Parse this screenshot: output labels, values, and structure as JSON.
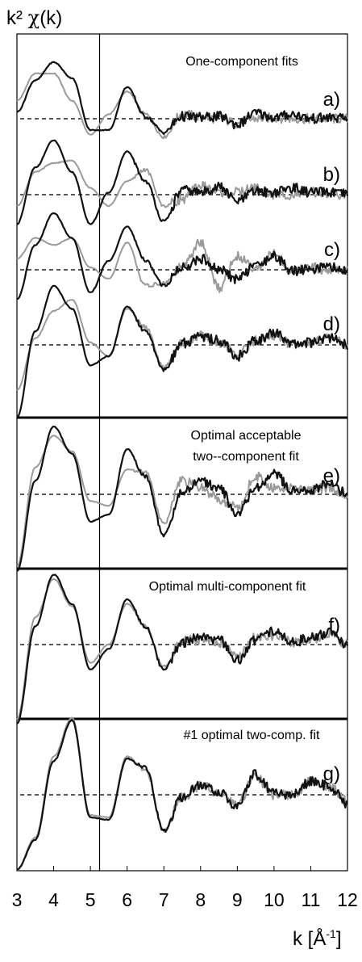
{
  "chart_data": {
    "type": "line",
    "ylabel_prefix": "k²",
    "ylabel_symbol": "χ",
    "ylabel_suffix": "(k)",
    "xlabel_k": "k [",
    "xlabel_A": "Å",
    "xlabel_exp": "-1",
    "xlabel_close": "]",
    "xlim": [
      3,
      12
    ],
    "xticks": [
      "3",
      "4",
      "5",
      "6",
      "7",
      "8",
      "9",
      "10",
      "11",
      "12"
    ],
    "vline_x": 5.25,
    "grid": false,
    "legend": "none",
    "colors": {
      "data": "#111111",
      "fit": "#9a9a9a",
      "baseline": "#222222"
    },
    "panels": [
      {
        "label": "a)",
        "title": "One-component fits",
        "x": [
          3.0,
          3.5,
          4.0,
          4.5,
          5.0,
          5.5,
          6.0,
          6.5,
          7.0,
          7.5,
          8.0,
          8.5,
          9.0,
          9.5,
          10.0,
          10.5,
          11.0,
          11.5,
          12.0
        ],
        "series": [
          {
            "role": "data",
            "values": [
              0.3,
              1.7,
              2.5,
              1.8,
              -0.5,
              -0.5,
              1.4,
              0.1,
              -0.6,
              0.1,
              0.05,
              0.1,
              -0.25,
              0.25,
              0.05,
              0.2,
              0.0,
              0.05,
              0.0
            ]
          },
          {
            "role": "fit",
            "values": [
              0.8,
              2.0,
              2.0,
              0.8,
              -0.7,
              0.2,
              1.2,
              0.2,
              -0.8,
              0.2,
              0.1,
              0.0,
              -0.2,
              0.0,
              0.05,
              0.0,
              0.0,
              0.0,
              0.0
            ]
          }
        ]
      },
      {
        "label": "b)",
        "title": "",
        "x": [
          3.0,
          3.5,
          4.0,
          4.5,
          5.0,
          5.5,
          6.0,
          6.5,
          7.0,
          7.5,
          8.0,
          8.5,
          9.0,
          9.5,
          10.0,
          10.5,
          11.0,
          11.5,
          12.0
        ],
        "series": [
          {
            "role": "data",
            "values": [
              -1.3,
              1.2,
              2.4,
              1.0,
              -1.3,
              0.1,
              1.9,
              0.6,
              -1.2,
              0.2,
              0.1,
              0.35,
              -0.3,
              0.15,
              0.1,
              0.3,
              0.1,
              0.1,
              0.0
            ]
          },
          {
            "role": "fit",
            "values": [
              -0.5,
              1.0,
              1.4,
              1.5,
              0.3,
              -0.5,
              0.6,
              1.1,
              -0.5,
              -0.2,
              0.4,
              0.1,
              0.1,
              0.3,
              0.0,
              0.0,
              0.1,
              0.0,
              0.0
            ]
          }
        ]
      },
      {
        "label": "c)",
        "title": "",
        "x": [
          3.0,
          3.5,
          4.0,
          4.5,
          5.0,
          5.5,
          6.0,
          6.5,
          7.0,
          7.5,
          8.0,
          8.5,
          9.0,
          9.5,
          10.0,
          10.5,
          11.0,
          11.5,
          12.0
        ],
        "series": [
          {
            "role": "data",
            "values": [
              -1.3,
              1.1,
              2.5,
              1.4,
              -1.0,
              0.4,
              1.9,
              0.4,
              -0.7,
              0.1,
              0.5,
              0.0,
              -0.4,
              0.2,
              0.6,
              -0.05,
              0.05,
              0.1,
              0.0
            ]
          },
          {
            "role": "fit",
            "values": [
              0.5,
              1.4,
              1.1,
              1.4,
              0.1,
              -0.4,
              1.2,
              -0.7,
              -0.6,
              0.1,
              1.2,
              -0.8,
              0.6,
              0.1,
              0.7,
              -0.1,
              0.1,
              0.0,
              0.0
            ]
          }
        ]
      },
      {
        "label": "d)",
        "title": "",
        "x": [
          3.0,
          3.5,
          4.0,
          4.5,
          5.0,
          5.5,
          6.0,
          6.5,
          7.0,
          7.5,
          8.0,
          8.5,
          9.0,
          9.5,
          10.0,
          10.5,
          11.0,
          11.5,
          12.0
        ],
        "series": [
          {
            "role": "data",
            "values": [
              -3.2,
              0.6,
              2.6,
              1.6,
              -0.9,
              -0.5,
              1.7,
              0.6,
              -1.1,
              0.05,
              0.4,
              0.2,
              -0.5,
              0.2,
              0.5,
              0.05,
              0.1,
              0.3,
              0.0
            ]
          },
          {
            "role": "fit",
            "values": [
              -2.0,
              0.3,
              1.5,
              2.0,
              0.1,
              -0.5,
              1.6,
              0.8,
              -1.0,
              0.1,
              0.4,
              0.1,
              -0.4,
              0.2,
              0.4,
              0.05,
              0.1,
              0.3,
              0.0
            ]
          }
        ]
      },
      {
        "label": "e)",
        "title": "Optimal acceptable two--component fit",
        "x": [
          3.0,
          3.5,
          4.0,
          4.5,
          5.0,
          5.5,
          6.0,
          6.5,
          7.0,
          7.5,
          8.0,
          8.5,
          9.0,
          9.5,
          10.0,
          10.5,
          11.0,
          11.5,
          12.0
        ],
        "series": [
          {
            "role": "data",
            "values": [
              -3.4,
              0.6,
              3.0,
              1.8,
              -1.2,
              -0.9,
              2.0,
              0.8,
              -1.8,
              0.1,
              0.6,
              0.3,
              -0.9,
              0.3,
              0.9,
              0.2,
              0.2,
              0.5,
              0.0
            ]
          },
          {
            "role": "fit",
            "values": [
              -3.2,
              1.2,
              2.6,
              1.9,
              -0.3,
              -0.5,
              1.1,
              1.0,
              -1.3,
              0.6,
              0.3,
              -0.2,
              -0.6,
              0.8,
              0.3,
              0.3,
              0.2,
              0.3,
              0.0
            ]
          }
        ]
      },
      {
        "label": "f)",
        "title": "Optimal multi-component fit",
        "x": [
          3.0,
          3.5,
          4.0,
          4.5,
          5.0,
          5.5,
          6.0,
          6.5,
          7.0,
          7.5,
          8.0,
          8.5,
          9.0,
          9.5,
          10.0,
          10.5,
          11.0,
          11.5,
          12.0
        ],
        "series": [
          {
            "role": "data",
            "values": [
              -3.5,
              0.8,
              3.1,
              1.8,
              -1.1,
              -0.2,
              2.0,
              0.8,
              -1.1,
              0.1,
              0.3,
              0.2,
              -0.7,
              0.2,
              0.6,
              0.1,
              0.3,
              0.5,
              0.0
            ]
          },
          {
            "role": "fit",
            "values": [
              -3.3,
              1.2,
              2.9,
              1.7,
              -0.8,
              0.0,
              1.8,
              0.8,
              -1.0,
              0.2,
              0.2,
              0.1,
              -0.5,
              0.3,
              0.4,
              0.1,
              0.2,
              0.5,
              0.0
            ]
          }
        ]
      },
      {
        "label": "g)",
        "title": "#1 optimal two-comp. fit",
        "x": [
          3.0,
          3.5,
          4.0,
          4.5,
          5.0,
          5.5,
          6.0,
          6.5,
          7.0,
          7.5,
          8.0,
          8.5,
          9.0,
          9.5,
          10.0,
          10.5,
          11.0,
          11.5,
          12.0
        ],
        "series": [
          {
            "role": "data",
            "values": [
              -3.3,
              -2.0,
              1.5,
              3.3,
              -1.0,
              -1.1,
              1.6,
              1.2,
              -1.6,
              -0.1,
              0.4,
              0.1,
              -0.5,
              0.9,
              0.1,
              0.0,
              0.6,
              0.4,
              -0.4
            ]
          },
          {
            "role": "fit",
            "values": [
              -3.3,
              -1.9,
              1.7,
              3.4,
              -0.9,
              -1.0,
              1.7,
              1.1,
              -1.6,
              -0.1,
              0.4,
              0.1,
              -0.4,
              0.8,
              0.0,
              0.0,
              0.6,
              0.4,
              -0.3
            ]
          }
        ]
      }
    ]
  }
}
